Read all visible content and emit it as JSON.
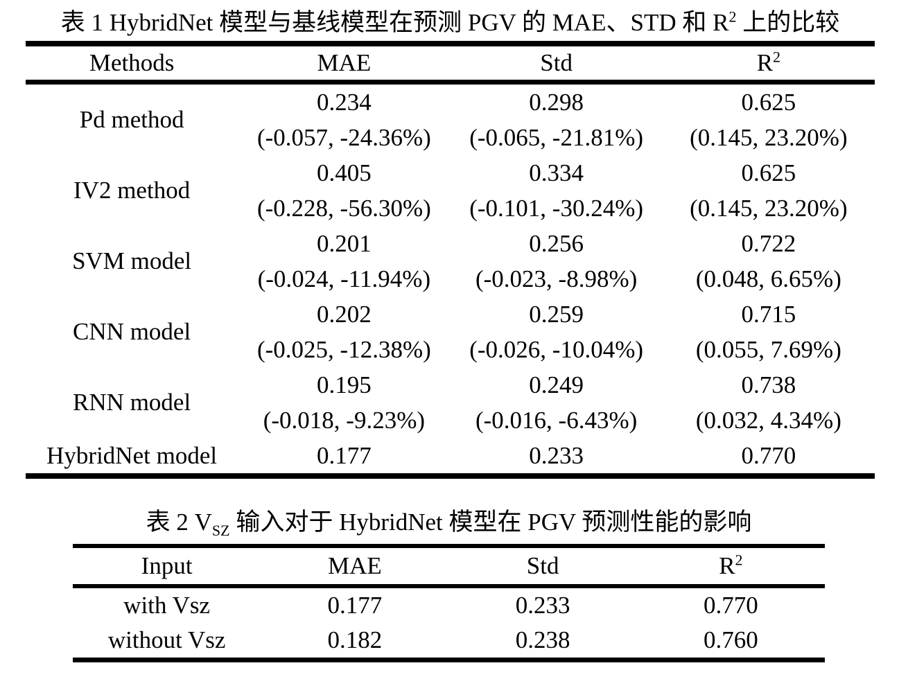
{
  "page": {
    "background": "#ffffff",
    "text_color": "#000000"
  },
  "table1": {
    "title_parts": {
      "prefix": "表 1 HybridNet 模型与基线模型在预测 PGV 的 MAE、STD 和 R",
      "sup": "2",
      "suffix": " 上的比较"
    },
    "columns": [
      {
        "label": "Methods",
        "sup": ""
      },
      {
        "label": "MAE",
        "sup": ""
      },
      {
        "label": "Std",
        "sup": ""
      },
      {
        "label": "R",
        "sup": "2"
      }
    ],
    "rows": [
      {
        "method": "Pd method",
        "mae": {
          "value": "0.234",
          "delta": "(-0.057, -24.36%)"
        },
        "std": {
          "value": "0.298",
          "delta": "(-0.065, -21.81%)"
        },
        "r2": {
          "value": "0.625",
          "delta": "(0.145, 23.20%)"
        }
      },
      {
        "method": "IV2 method",
        "mae": {
          "value": "0.405",
          "delta": "(-0.228, -56.30%)"
        },
        "std": {
          "value": "0.334",
          "delta": "(-0.101, -30.24%)"
        },
        "r2": {
          "value": "0.625",
          "delta": "(0.145, 23.20%)"
        }
      },
      {
        "method": "SVM model",
        "mae": {
          "value": "0.201",
          "delta": "(-0.024, -11.94%)"
        },
        "std": {
          "value": "0.256",
          "delta": "(-0.023, -8.98%)"
        },
        "r2": {
          "value": "0.722",
          "delta": "(0.048, 6.65%)"
        }
      },
      {
        "method": "CNN model",
        "mae": {
          "value": "0.202",
          "delta": "(-0.025, -12.38%)"
        },
        "std": {
          "value": "0.259",
          "delta": "(-0.026, -10.04%)"
        },
        "r2": {
          "value": "0.715",
          "delta": "(0.055, 7.69%)"
        }
      },
      {
        "method": "RNN model",
        "mae": {
          "value": "0.195",
          "delta": "(-0.018, -9.23%)"
        },
        "std": {
          "value": "0.249",
          "delta": "(-0.016, -6.43%)"
        },
        "r2": {
          "value": "0.738",
          "delta": "(0.032, 4.34%)"
        }
      },
      {
        "method": "HybridNet model",
        "mae": {
          "value": "0.177"
        },
        "std": {
          "value": "0.233"
        },
        "r2": {
          "value": "0.770"
        }
      }
    ]
  },
  "table2": {
    "title_parts": {
      "prefix": "表 2 V",
      "sub": "SZ",
      "suffix": " 输入对于 HybridNet 模型在 PGV 预测性能的影响"
    },
    "columns": [
      {
        "label": "Input",
        "sup": ""
      },
      {
        "label": "MAE",
        "sup": ""
      },
      {
        "label": "Std",
        "sup": ""
      },
      {
        "label": "R",
        "sup": "2"
      }
    ],
    "rows": [
      {
        "input": "with Vsz",
        "mae": "0.177",
        "std": "0.233",
        "r2": "0.770"
      },
      {
        "input": "without Vsz",
        "mae": "0.182",
        "std": "0.238",
        "r2": "0.760"
      }
    ]
  }
}
